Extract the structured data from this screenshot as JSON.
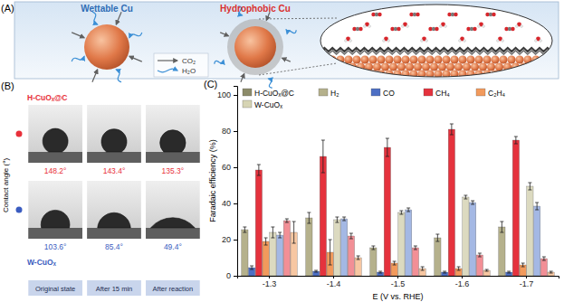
{
  "diagram": {
    "label": "(A)",
    "left_title": "Wettable Cu",
    "right_title": "Hydrophobic Cu",
    "key": [
      {
        "label": "CO₂"
      },
      {
        "label": "H₂O"
      }
    ]
  },
  "chart_data": [
    {
      "type": "droplet",
      "title": "(B)",
      "y_label": "Contact angle (°)",
      "categories": [
        "Original state",
        "After 15 min",
        "After reaction"
      ],
      "tick_labels": "x",
      "data_labels": true,
      "series": [
        {
          "name": "H-CuOₓ@C",
          "color": "#e8303a",
          "marker": "circle",
          "values": [
            148.2,
            143.4,
            135.3
          ],
          "value_labels": [
            "148.2°",
            "143.4°",
            "135.3°"
          ]
        },
        {
          "name": "W-CuOₓ",
          "color": "#3a5cc0",
          "marker": "circle",
          "values": [
            103.6,
            85.4,
            49.4
          ],
          "value_labels": [
            "103.6°",
            "85.4°",
            "49.4°"
          ]
        }
      ]
    },
    {
      "type": "bar",
      "title": "(C)",
      "x_label": "E (V vs. RHE)",
      "y_label": "Faradaic efficiency (%)",
      "categories": [
        "-1.3",
        "-1.4",
        "-1.5",
        "-1.6",
        "-1.7"
      ],
      "ylim": [
        0,
        105
      ],
      "yticks": [
        0,
        20,
        40,
        60,
        80,
        100
      ],
      "legend": "top-left",
      "groups": [
        {
          "name": "H-CuOₓ@C",
          "color": "#8c8b6a"
        },
        {
          "name": "W-CuOₓ",
          "color": "#d6d4b4"
        }
      ],
      "series": [
        {
          "name": "H₂",
          "group": "H-CuOₓ@C",
          "color": "#b5b18c",
          "values": [
            25.5,
            32,
            15.5,
            21,
            27
          ],
          "errors": [
            1.5,
            3,
            1,
            2,
            3
          ]
        },
        {
          "name": "CO",
          "group": "H-CuOₓ@C",
          "color": "#4d6fc4",
          "values": [
            4.5,
            2.5,
            2,
            2,
            2
          ],
          "errors": [
            1,
            0.5,
            0.5,
            0.5,
            0.5
          ]
        },
        {
          "name": "CH₄",
          "group": "H-CuOₓ@C",
          "color": "#e5323d",
          "values": [
            58.5,
            66,
            71,
            81,
            75
          ],
          "errors": [
            3,
            9,
            5,
            3,
            2
          ]
        },
        {
          "name": "C₂H₄",
          "group": "H-CuOₓ@C",
          "color": "#f29a5c",
          "values": [
            19,
            13,
            7,
            4,
            6
          ],
          "errors": [
            2,
            7,
            1,
            1,
            1
          ]
        },
        {
          "name": "H₂",
          "group": "W-CuOₓ",
          "color": "#dcdac0",
          "values": [
            24,
            31,
            35,
            43.5,
            49.5
          ],
          "errors": [
            3,
            1.5,
            1,
            1,
            2
          ]
        },
        {
          "name": "CO",
          "group": "W-CuOₓ",
          "color": "#a4b8e4",
          "values": [
            22.5,
            31.5,
            36.5,
            40.5,
            38.5
          ],
          "errors": [
            1.5,
            1,
            1,
            1,
            2
          ]
        },
        {
          "name": "CH₄",
          "group": "W-CuOₓ",
          "color": "#f28f96",
          "values": [
            30.5,
            22,
            15.5,
            11.5,
            9.5
          ],
          "errors": [
            1,
            1.5,
            1,
            1,
            1
          ]
        },
        {
          "name": "C₂H₄",
          "group": "W-CuOₓ",
          "color": "#f7c7a2",
          "values": [
            24,
            10,
            4,
            3,
            2
          ],
          "errors": [
            6,
            1,
            1,
            0.5,
            0.5
          ]
        }
      ]
    }
  ]
}
